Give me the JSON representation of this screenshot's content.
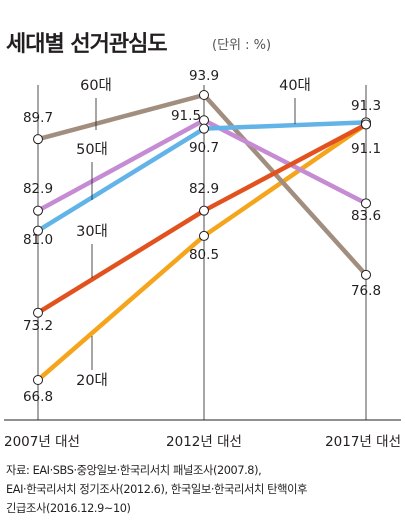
{
  "title": "세대별 선거관심도",
  "unit_note": "(단위 : %)",
  "source_lines": [
    "자료: EAI·SBS·중앙일보·한국리서치 패널조사(2007.8),",
    "EAI·한국리서치 정기조사(2012.6), 한국일보·한국리서치 탄핵이후",
    "긴급조사(2016.12.9~10)"
  ],
  "chart_data": {
    "type": "line",
    "title": "세대별 선거관심도",
    "xlabel": "",
    "ylabel": "",
    "unit": "%",
    "categories": [
      "2007년 대선",
      "2012년 대선",
      "2017년 대선"
    ],
    "ylim": [
      64,
      96
    ],
    "grid": false,
    "legend": "inline labels",
    "series": [
      {
        "name": "60대",
        "values": [
          89.7,
          93.9,
          76.8
        ],
        "color": "#a28e7e",
        "value_labels": [
          "89.7",
          "93.9",
          "76.8"
        ]
      },
      {
        "name": "50대",
        "values": [
          82.9,
          91.5,
          83.6
        ],
        "color": "#c58bd3",
        "value_labels": [
          "82.9",
          "91.5",
          "83.6"
        ]
      },
      {
        "name": "40대",
        "values": [
          81.0,
          90.7,
          91.3
        ],
        "color": "#62b4e8",
        "value_labels": [
          "81.0",
          "90.7",
          "91.3"
        ]
      },
      {
        "name": "30대",
        "values": [
          73.2,
          82.9,
          91.1
        ],
        "color": "#e2521f",
        "value_labels": [
          "73.2",
          "82.9",
          "91.1"
        ]
      },
      {
        "name": "20대",
        "values": [
          66.8,
          80.5,
          91.1
        ],
        "color": "#f5a51c",
        "value_labels": [
          "66.8",
          "80.5",
          ""
        ]
      }
    ]
  }
}
